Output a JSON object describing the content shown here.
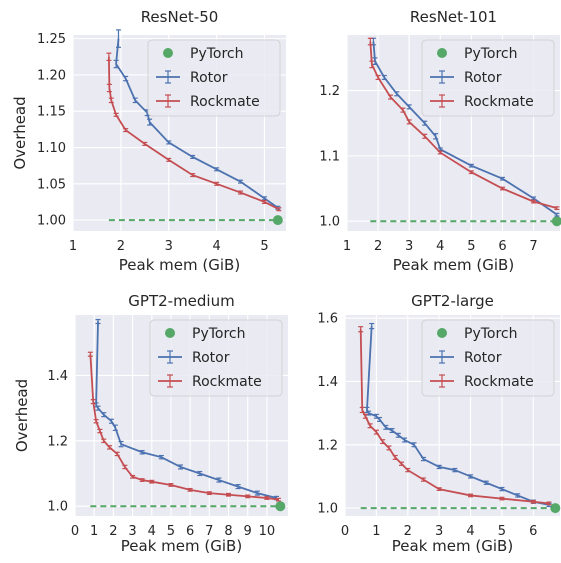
{
  "colors": {
    "background": "#eaeaf2",
    "grid": "#ffffff",
    "pytorch": "#55a868",
    "rotor": "#4c72b0",
    "rockmate": "#c44e52",
    "text": "#262626"
  },
  "chart_data": [
    {
      "type": "line",
      "title": "ResNet-50",
      "xlabel": "Peak mem (GiB)",
      "ylabel": "Overhead",
      "xlim": [
        1,
        5.45
      ],
      "ylim": [
        0.985,
        1.255
      ],
      "xticks": [
        1,
        2,
        3,
        4,
        5
      ],
      "xtick_labels": [
        "1",
        "2",
        "3",
        "4",
        "5"
      ],
      "yticks": [
        1.0,
        1.05,
        1.1,
        1.15,
        1.2,
        1.25
      ],
      "ytick_labels": [
        "1.00",
        "1.05",
        "1.10",
        "1.15",
        "1.20",
        "1.25"
      ],
      "grid": true,
      "legend": {
        "position": "top-right",
        "entries": [
          "PyTorch",
          "Rotor",
          "Rockmate"
        ]
      },
      "series": [
        {
          "name": "PyTorch",
          "style": "point",
          "x": [
            5.28
          ],
          "y": [
            1.0
          ],
          "baseline": 1.0,
          "baseline_x": [
            1.75,
            5.28
          ]
        },
        {
          "name": "Rotor",
          "style": "line-errorbar",
          "x": [
            1.95,
            1.9,
            2.1,
            2.3,
            2.55,
            2.6,
            3.0,
            3.5,
            4.0,
            4.5,
            5.0,
            5.28
          ],
          "y": [
            1.25,
            1.215,
            1.195,
            1.165,
            1.148,
            1.135,
            1.107,
            1.087,
            1.07,
            1.053,
            1.03,
            1.017
          ],
          "err": [
            0.012,
            0.005,
            0.003,
            0.003,
            0.004,
            0.004,
            0.002,
            0.002,
            0.002,
            0.002,
            0.002,
            0.002
          ]
        },
        {
          "name": "Rockmate",
          "style": "line-errorbar",
          "x": [
            1.75,
            1.76,
            1.8,
            1.9,
            2.1,
            2.5,
            3.0,
            3.5,
            4.0,
            4.5,
            5.0,
            5.3
          ],
          "y": [
            1.225,
            1.182,
            1.165,
            1.145,
            1.124,
            1.105,
            1.083,
            1.062,
            1.05,
            1.038,
            1.025,
            1.015
          ],
          "err": [
            0.005,
            0.005,
            0.003,
            0.002,
            0.002,
            0.002,
            0.002,
            0.002,
            0.002,
            0.002,
            0.002,
            0.002
          ]
        }
      ]
    },
    {
      "type": "line",
      "title": "ResNet-101",
      "xlabel": "Peak mem (GiB)",
      "ylabel": "",
      "xlim": [
        1,
        7.85
      ],
      "ylim": [
        0.985,
        1.285
      ],
      "xticks": [
        1,
        2,
        3,
        4,
        5,
        6,
        7
      ],
      "xtick_labels": [
        "1",
        "2",
        "3",
        "4",
        "5",
        "6",
        "7"
      ],
      "yticks": [
        1.0,
        1.1,
        1.2
      ],
      "ytick_labels": [
        "1.0",
        "1.1",
        "1.2"
      ],
      "grid": true,
      "legend": {
        "position": "top-right",
        "entries": [
          "PyTorch",
          "Rotor",
          "Rockmate"
        ]
      },
      "series": [
        {
          "name": "PyTorch",
          "style": "point",
          "x": [
            7.75
          ],
          "y": [
            1.0
          ],
          "baseline": 1.0,
          "baseline_x": [
            1.75,
            7.75
          ]
        },
        {
          "name": "Rotor",
          "style": "line-errorbar",
          "x": [
            1.85,
            1.9,
            2.2,
            2.6,
            3.0,
            3.5,
            3.85,
            4.0,
            5.0,
            6.0,
            7.0,
            7.75
          ],
          "y": [
            1.275,
            1.245,
            1.22,
            1.195,
            1.175,
            1.15,
            1.13,
            1.11,
            1.085,
            1.065,
            1.035,
            1.01
          ],
          "err": [
            0.005,
            0.005,
            0.003,
            0.003,
            0.003,
            0.003,
            0.004,
            0.002,
            0.002,
            0.002,
            0.002,
            0.002
          ]
        },
        {
          "name": "Rockmate",
          "style": "line-errorbar",
          "x": [
            1.75,
            1.8,
            2.0,
            2.4,
            2.8,
            3.0,
            3.5,
            4.0,
            5.0,
            6.0,
            7.0,
            7.75
          ],
          "y": [
            1.275,
            1.24,
            1.22,
            1.19,
            1.17,
            1.152,
            1.13,
            1.105,
            1.075,
            1.05,
            1.03,
            1.02
          ],
          "err": [
            0.005,
            0.005,
            0.003,
            0.003,
            0.003,
            0.003,
            0.003,
            0.002,
            0.002,
            0.002,
            0.002,
            0.002
          ]
        }
      ]
    },
    {
      "type": "line",
      "title": "GPT2-medium",
      "xlabel": "Peak mem (GiB)",
      "ylabel": "Overhead",
      "xlim": [
        0,
        11.1
      ],
      "ylim": [
        0.97,
        1.585
      ],
      "xticks": [
        0,
        1,
        2,
        3,
        4,
        5,
        6,
        7,
        8,
        9,
        10
      ],
      "xtick_labels": [
        "0",
        "1",
        "2",
        "3",
        "4",
        "5",
        "6",
        "7",
        "8",
        "9",
        "10"
      ],
      "yticks": [
        1.0,
        1.2,
        1.4
      ],
      "ytick_labels": [
        "1.0",
        "1.2",
        "1.4"
      ],
      "grid": true,
      "legend": {
        "position": "top-right",
        "entries": [
          "PyTorch",
          "Rotor",
          "Rockmate"
        ]
      },
      "series": [
        {
          "name": "PyTorch",
          "style": "point",
          "x": [
            10.7
          ],
          "y": [
            1.0
          ],
          "baseline": 1.0,
          "baseline_x": [
            0.8,
            10.7
          ]
        },
        {
          "name": "Rotor",
          "style": "line-errorbar",
          "x": [
            1.2,
            1.1,
            1.2,
            1.5,
            1.9,
            2.1,
            2.4,
            3.5,
            4.5,
            5.5,
            6.5,
            7.5,
            8.5,
            9.5,
            10.5
          ],
          "y": [
            1.565,
            1.31,
            1.3,
            1.28,
            1.26,
            1.24,
            1.19,
            1.165,
            1.15,
            1.12,
            1.1,
            1.08,
            1.06,
            1.04,
            1.025
          ],
          "err": [
            0.006,
            0.006,
            0.006,
            0.006,
            0.006,
            0.008,
            0.008,
            0.005,
            0.005,
            0.006,
            0.006,
            0.006,
            0.006,
            0.006,
            0.005
          ]
        },
        {
          "name": "Rockmate",
          "style": "line-errorbar",
          "x": [
            0.8,
            0.95,
            1.1,
            1.3,
            1.5,
            1.8,
            2.2,
            2.6,
            3.0,
            3.5,
            4.0,
            5.0,
            6.0,
            7.0,
            8.0,
            9.0,
            10.0,
            10.6
          ],
          "y": [
            1.465,
            1.32,
            1.26,
            1.23,
            1.2,
            1.18,
            1.16,
            1.12,
            1.09,
            1.08,
            1.075,
            1.065,
            1.05,
            1.04,
            1.035,
            1.03,
            1.025,
            1.02
          ],
          "err": [
            0.006,
            0.006,
            0.005,
            0.005,
            0.005,
            0.005,
            0.005,
            0.005,
            0.004,
            0.004,
            0.004,
            0.004,
            0.004,
            0.004,
            0.004,
            0.004,
            0.004,
            0.004
          ]
        }
      ]
    },
    {
      "type": "line",
      "title": "GPT2-large",
      "xlabel": "Peak mem (GiB)",
      "ylabel": "",
      "xlim": [
        0,
        6.85
      ],
      "ylim": [
        0.975,
        1.61
      ],
      "xticks": [
        0,
        1,
        2,
        3,
        4,
        5,
        6
      ],
      "xtick_labels": [
        "0",
        "1",
        "2",
        "3",
        "4",
        "5",
        "6"
      ],
      "yticks": [
        1.0,
        1.2,
        1.4,
        1.6
      ],
      "ytick_labels": [
        "1.0",
        "1.2",
        "1.4",
        "1.6"
      ],
      "grid": true,
      "legend": {
        "position": "top-right",
        "entries": [
          "PyTorch",
          "Rotor",
          "Rockmate"
        ]
      },
      "series": [
        {
          "name": "PyTorch",
          "style": "point",
          "x": [
            6.7
          ],
          "y": [
            1.0
          ],
          "baseline": 1.0,
          "baseline_x": [
            0.5,
            6.7
          ]
        },
        {
          "name": "Rotor",
          "style": "line-errorbar",
          "x": [
            0.85,
            0.7,
            0.75,
            1.0,
            1.1,
            1.3,
            1.5,
            1.7,
            1.9,
            2.2,
            2.5,
            3.0,
            3.5,
            4.0,
            4.5,
            5.0,
            5.5,
            6.0,
            6.5
          ],
          "y": [
            1.575,
            1.31,
            1.3,
            1.29,
            1.28,
            1.255,
            1.245,
            1.23,
            1.215,
            1.2,
            1.155,
            1.13,
            1.12,
            1.1,
            1.08,
            1.06,
            1.04,
            1.02,
            1.01
          ],
          "err": [
            0.008,
            0.008,
            0.006,
            0.006,
            0.006,
            0.006,
            0.006,
            0.006,
            0.006,
            0.006,
            0.005,
            0.005,
            0.005,
            0.005,
            0.005,
            0.005,
            0.005,
            0.005,
            0.005
          ]
        },
        {
          "name": "Rockmate",
          "style": "line-errorbar",
          "x": [
            0.5,
            0.55,
            0.65,
            0.8,
            1.0,
            1.2,
            1.4,
            1.6,
            1.8,
            2.0,
            2.5,
            3.0,
            4.0,
            5.0,
            6.0,
            6.5
          ],
          "y": [
            1.565,
            1.31,
            1.29,
            1.26,
            1.24,
            1.21,
            1.19,
            1.16,
            1.14,
            1.12,
            1.09,
            1.06,
            1.04,
            1.03,
            1.02,
            1.015
          ],
          "err": [
            0.008,
            0.008,
            0.006,
            0.006,
            0.006,
            0.006,
            0.006,
            0.006,
            0.005,
            0.005,
            0.005,
            0.004,
            0.004,
            0.004,
            0.004,
            0.004
          ]
        }
      ]
    }
  ]
}
